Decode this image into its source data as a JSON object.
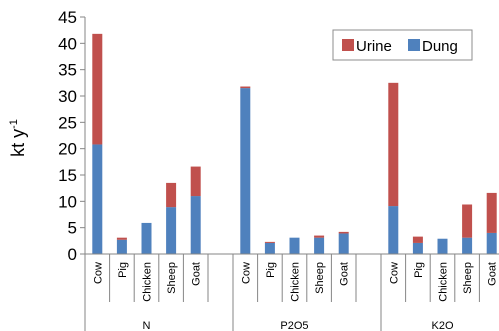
{
  "chart_data": {
    "type": "bar",
    "stacked": true,
    "ylabel": "kt y",
    "ylabel_superscript": "-1",
    "ylim": [
      0,
      45
    ],
    "yticks": [
      0,
      5,
      10,
      15,
      20,
      25,
      30,
      35,
      40,
      45
    ],
    "grid": false,
    "legend_position": "top-right",
    "groups": [
      {
        "label": "N",
        "categories": [
          "Cow",
          "Pig",
          "Chicken",
          "Sheep",
          "Goat"
        ],
        "series": [
          {
            "name": "Dung",
            "values": [
              20.8,
              2.7,
              5.9,
              8.9,
              11.0
            ]
          },
          {
            "name": "Urine",
            "values": [
              21.0,
              0.4,
              0.0,
              4.6,
              5.6
            ]
          }
        ]
      },
      {
        "label": "P2O5",
        "categories": [
          "Cow",
          "Pig",
          "Chicken",
          "Sheep",
          "Goat"
        ],
        "series": [
          {
            "name": "Dung",
            "values": [
              31.5,
              2.1,
              3.1,
              3.1,
              3.9
            ]
          },
          {
            "name": "Urine",
            "values": [
              0.3,
              0.2,
              0.0,
              0.4,
              0.3
            ]
          }
        ]
      },
      {
        "label": "K2O",
        "categories": [
          "Cow",
          "Pig",
          "Chicken",
          "Sheep",
          "Goat"
        ],
        "series": [
          {
            "name": "Dung",
            "values": [
              9.1,
              2.1,
              2.9,
              3.1,
              4.0
            ]
          },
          {
            "name": "Urine",
            "values": [
              23.4,
              1.2,
              0.0,
              6.3,
              7.6
            ]
          }
        ]
      }
    ],
    "legend": [
      {
        "name": "Urine",
        "color": "#c0504d"
      },
      {
        "name": "Dung",
        "color": "#4f81bd"
      }
    ],
    "colors": {
      "Dung": "#4f81bd",
      "Urine": "#c0504d"
    }
  }
}
